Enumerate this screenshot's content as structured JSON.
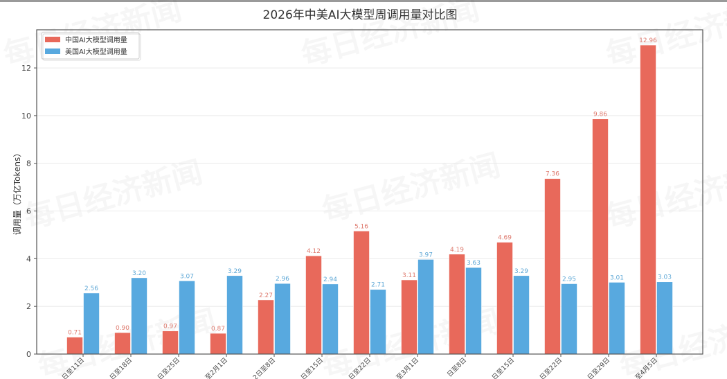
{
  "chart_data": {
    "type": "bar",
    "title": "2026年中美AI大模型周调用量对比图",
    "xlabel": "",
    "ylabel": "调用量（万亿Tokens）",
    "ylim": [
      0,
      13.6
    ],
    "yticks": [
      0,
      2,
      4,
      6,
      8,
      10,
      12
    ],
    "grid": true,
    "legend_position": "upper left",
    "categories": [
      "日至11日",
      "日至18日",
      "日至25日",
      "至2月1日",
      "2日至8日",
      "日至15日",
      "日至22日",
      "至3月1日",
      "日至8日",
      "日至15日",
      "日至22日",
      "日至29日",
      "至4月5日"
    ],
    "series": [
      {
        "name": "中国AI大模型调用量",
        "color": "#E8695B",
        "label_color": "#DE7A6E",
        "values": [
          0.71,
          0.9,
          0.97,
          0.87,
          2.27,
          4.12,
          5.16,
          3.11,
          4.19,
          4.69,
          7.36,
          9.86,
          12.96
        ]
      },
      {
        "name": "美国AI大模型调用量",
        "color": "#58A9DF",
        "label_color": "#5FA8D6",
        "values": [
          2.56,
          3.2,
          3.07,
          3.29,
          2.96,
          2.94,
          2.71,
          3.97,
          3.63,
          3.29,
          2.95,
          3.01,
          3.03
        ]
      }
    ],
    "value_labels": [
      [
        "0.71",
        "0.90",
        "0.97",
        "0.87",
        "2.27",
        "4.12",
        "5.16",
        "3.11",
        "4.19",
        "4.69",
        "7.36",
        "9.86",
        "12.96"
      ],
      [
        "2.56",
        "3.20",
        "3.07",
        "3.29",
        "2.96",
        "2.94",
        "2.71",
        "3.97",
        "3.63",
        "3.29",
        "2.95",
        "3.01",
        "3.03"
      ]
    ]
  },
  "watermark": "每日经济新闻"
}
